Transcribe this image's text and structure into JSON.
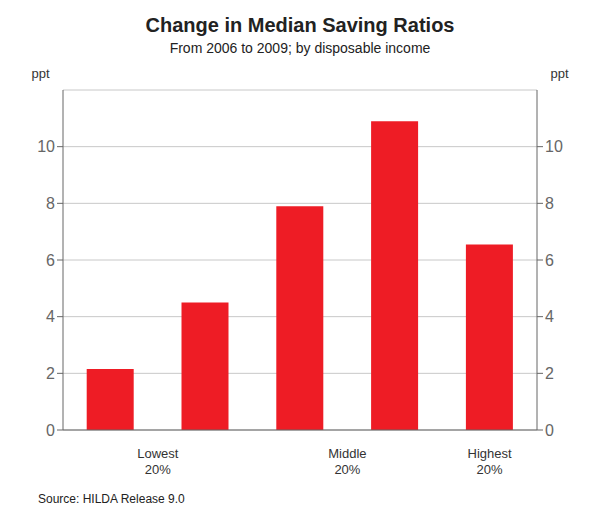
{
  "chart_data": {
    "type": "bar",
    "title": "Change in Median Saving Ratios",
    "subtitle": "From 2006 to 2009; by disposable income",
    "source": "Source: HILDA Release 9.0",
    "categories": [
      "Lowest\n20%",
      null,
      "Middle\n20%",
      null,
      "Highest\n20%"
    ],
    "values": [
      2.15,
      4.5,
      7.9,
      10.9,
      6.55
    ],
    "color": "#ee1c25",
    "ylim": [
      0,
      12
    ],
    "yticks": [
      0,
      2,
      4,
      6,
      8,
      10
    ],
    "ylabel": "ppt",
    "y2lim": [
      0,
      12
    ],
    "y2ticks": [
      0,
      2,
      4,
      6,
      8,
      10
    ],
    "y2label": "ppt",
    "grid": true
  }
}
